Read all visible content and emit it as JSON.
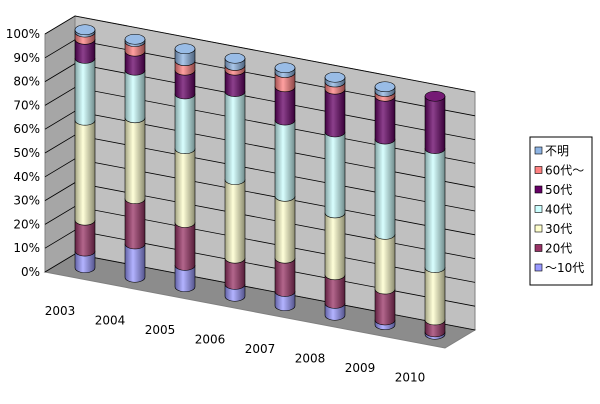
{
  "chart_data": {
    "type": "bar",
    "style": "3d-stacked-cylinder-100-percent",
    "categories": [
      "2003",
      "2004",
      "2005",
      "2006",
      "2007",
      "2008",
      "2009",
      "2010"
    ],
    "y_ticks": [
      "0%",
      "10%",
      "20%",
      "30%",
      "40%",
      "50%",
      "60%",
      "70%",
      "80%",
      "90%",
      "100%"
    ],
    "ylim": [
      0,
      100
    ],
    "grid": true,
    "legend_position": "right",
    "series": [
      {
        "name": "～10代",
        "color": "#9999ff",
        "values": [
          7,
          14,
          9,
          5,
          6,
          5,
          2,
          1
        ]
      },
      {
        "name": "20代",
        "color": "#993366",
        "values": [
          13,
          19,
          18,
          11,
          14,
          12,
          13,
          5
        ]
      },
      {
        "name": "30代",
        "color": "#ffffcc",
        "values": [
          42,
          34,
          31,
          33,
          26,
          26,
          23,
          22
        ]
      },
      {
        "name": "40代",
        "color": "#ccffff",
        "values": [
          26,
          20,
          23,
          37,
          32,
          34,
          40,
          50
        ]
      },
      {
        "name": "50代",
        "color": "#660066",
        "values": [
          8,
          8,
          10,
          9,
          14,
          18,
          18,
          22
        ]
      },
      {
        "name": "60代～",
        "color": "#ff8080",
        "values": [
          3,
          4,
          4,
          2,
          6,
          3,
          2,
          0
        ]
      },
      {
        "name": "不明",
        "color": "#8eb4e3",
        "values": [
          1,
          1,
          5,
          3,
          2,
          2,
          2,
          0
        ]
      }
    ],
    "legend_order": [
      "不明",
      "60代～",
      "50代",
      "40代",
      "30代",
      "20代",
      "～10代"
    ]
  }
}
